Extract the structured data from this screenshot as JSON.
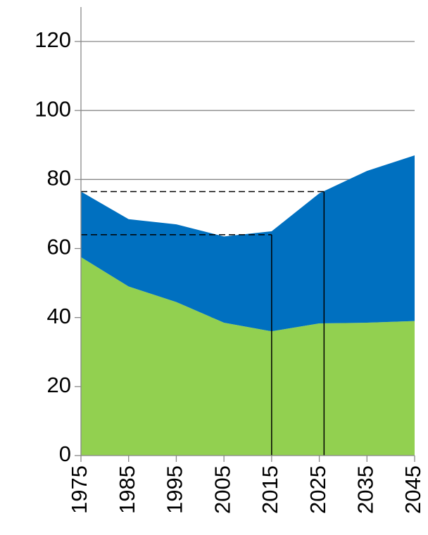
{
  "chart_data": {
    "type": "stacked_area",
    "x": [
      1975,
      1985,
      1995,
      2005,
      2015,
      2025,
      2035,
      2045
    ],
    "series": [
      {
        "color": "#92d050",
        "values": [
          57.5,
          49,
          44.5,
          38.5,
          36,
          38.3,
          38.5,
          39
        ]
      },
      {
        "color": "#0070c0",
        "values": [
          19,
          19.5,
          22.5,
          25,
          29,
          37.7,
          44,
          48
        ]
      }
    ],
    "xlim": [
      1975,
      2045
    ],
    "xticks": [
      1975,
      1985,
      1995,
      2005,
      2015,
      2025,
      2035,
      2045
    ],
    "ylim": [
      0,
      120
    ],
    "yticks": [
      0,
      20,
      40,
      60,
      80,
      100,
      120
    ],
    "grid": true,
    "reference_lines": [
      {
        "x": 2026,
        "y": 76.5
      },
      {
        "x": 2015,
        "y": 64
      }
    ]
  }
}
